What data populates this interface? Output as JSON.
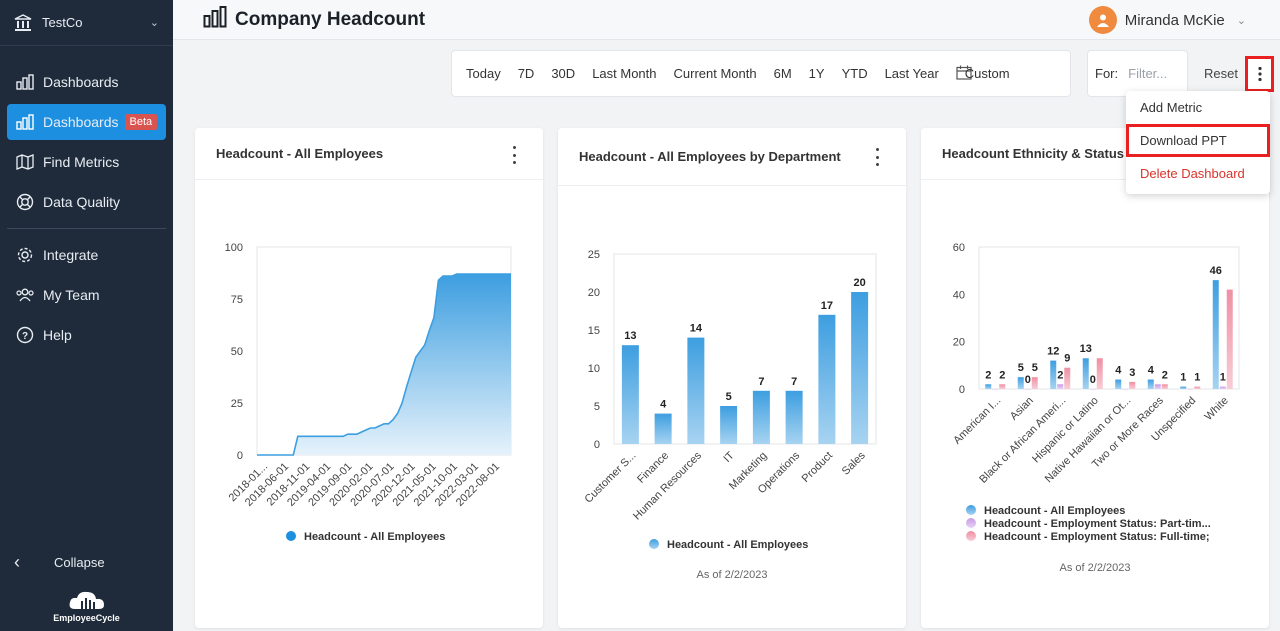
{
  "sidebar": {
    "org_name": "TestCo",
    "items": [
      {
        "label": "Dashboards",
        "badge": ""
      },
      {
        "label": "Dashboards",
        "badge": "Beta"
      },
      {
        "label": "Find Metrics"
      },
      {
        "label": "Data Quality"
      },
      {
        "label": "Integrate"
      },
      {
        "label": "My Team"
      },
      {
        "label": "Help"
      }
    ],
    "collapse_label": "Collapse",
    "logo_text": "EmployeeCycle"
  },
  "header": {
    "title": "Company Headcount",
    "user_name": "Miranda McKie"
  },
  "toolbar": {
    "ranges": [
      "Today",
      "7D",
      "30D",
      "Last Month",
      "Current Month",
      "6M",
      "1Y",
      "YTD",
      "Last Year"
    ],
    "custom_label": "Custom",
    "for_label": "For:",
    "filter_placeholder": "Filter...",
    "reset_label": "Reset"
  },
  "menu": {
    "items": [
      "Add Metric",
      "Download PPT",
      "Delete Dashboard"
    ]
  },
  "cards": [
    {
      "title": "Headcount - All Employees",
      "as_of": ""
    },
    {
      "title": "Headcount - All Employees by Department",
      "as_of": "As of 2/2/2023"
    },
    {
      "title": "Headcount Ethnicity & Status",
      "as_of": "As of 2/2/2023"
    }
  ],
  "colors": {
    "accent": "#1d8fe0",
    "sidebar": "#1f2b3a",
    "line": "#3d9ee0",
    "bar": "#4fa5df",
    "pink": "#ef8fa3",
    "purple": "#c79be6",
    "danger": "#d9342b"
  },
  "chart_data": [
    {
      "type": "area",
      "x_ticks": [
        "2018-01...",
        "2018-06-01",
        "2018-11-01",
        "2019-04-01",
        "2019-09-01",
        "2020-02-01",
        "2020-07-01",
        "2020-12-01",
        "2021-05-01",
        "2021-10-01",
        "2022-03-01",
        "2022-08-01"
      ],
      "y_ticks": [
        0,
        25,
        50,
        75,
        100
      ],
      "ylim": [
        0,
        100
      ],
      "series": [
        {
          "name": "Headcount - All Employees",
          "values": [
            0,
            0,
            0,
            0,
            0,
            0,
            0,
            0,
            0,
            9,
            9,
            9,
            9,
            9,
            9,
            9,
            9,
            9,
            9,
            9,
            10,
            10,
            10,
            11,
            12,
            13,
            13,
            14,
            15,
            15,
            17,
            20,
            25,
            33,
            40,
            47,
            50,
            53,
            60,
            66,
            84,
            86,
            86,
            86,
            87,
            87,
            87,
            87,
            87,
            87,
            87,
            87,
            87,
            87,
            87,
            87,
            87
          ]
        }
      ]
    },
    {
      "type": "bar",
      "categories": [
        "Customer S...",
        "Finance",
        "Human Resources",
        "IT",
        "Marketing",
        "Operations",
        "Product",
        "Sales"
      ],
      "y_ticks": [
        0,
        5,
        10,
        15,
        20,
        25
      ],
      "ylim": [
        0,
        25
      ],
      "series": [
        {
          "name": "Headcount - All Employees",
          "values": [
            13,
            4,
            14,
            5,
            7,
            7,
            17,
            20
          ]
        }
      ]
    },
    {
      "type": "bar",
      "categories": [
        "American I...",
        "Asian",
        "Black or African Ameri...",
        "Hispanic or Latino",
        "Native Hawaiian or Ot...",
        "Two or More Races",
        "Unspecified",
        "White"
      ],
      "y_ticks": [
        0,
        20,
        40,
        60
      ],
      "ylim": [
        0,
        60
      ],
      "series": [
        {
          "name": "Headcount - All Employees",
          "values": [
            2,
            5,
            12,
            13,
            4,
            4,
            1,
            46
          ]
        },
        {
          "name": "Headcount - Employment Status: Part-tim...",
          "values": [
            0,
            0,
            2,
            0,
            0,
            2,
            0,
            1
          ]
        },
        {
          "name": "Headcount - Employment Status: Full-time;",
          "values": [
            2,
            5,
            9,
            13,
            3,
            2,
            1,
            42
          ]
        }
      ],
      "labels": [
        [
          "2",
          "5",
          "12",
          "13",
          "4",
          "4",
          "1",
          "46"
        ],
        [
          "",
          "0",
          "2",
          "0",
          "",
          "",
          "",
          "1"
        ],
        [
          "2",
          "5",
          "9",
          "",
          "3",
          "2",
          "1",
          ""
        ]
      ]
    }
  ]
}
